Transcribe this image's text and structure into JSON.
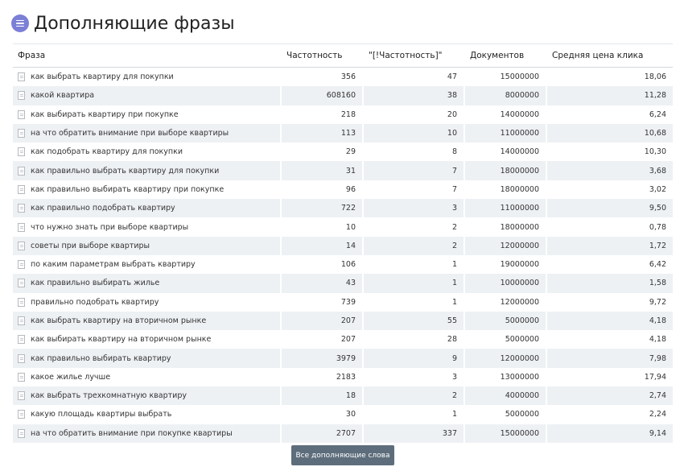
{
  "header": {
    "title": "Дополняющие фразы",
    "menu_icon": "menu-icon"
  },
  "table": {
    "columns": [
      "Фраза",
      "Частотность",
      "\"[!Частотность]\"",
      "Документов",
      "Средняя цена клика"
    ],
    "rows": [
      {
        "phrase": "как выбрать квартиру для покупки",
        "freq": "356",
        "exact": "47",
        "docs": "15000000",
        "cpc": "18,06"
      },
      {
        "phrase": "какой квартира",
        "freq": "608160",
        "exact": "38",
        "docs": "8000000",
        "cpc": "11,28"
      },
      {
        "phrase": "как выбирать квартиру при покупке",
        "freq": "218",
        "exact": "20",
        "docs": "14000000",
        "cpc": "6,24"
      },
      {
        "phrase": "на что обратить внимание при выборе квартиры",
        "freq": "113",
        "exact": "10",
        "docs": "11000000",
        "cpc": "10,68"
      },
      {
        "phrase": "как подобрать квартиру для покупки",
        "freq": "29",
        "exact": "8",
        "docs": "14000000",
        "cpc": "10,30"
      },
      {
        "phrase": "как правильно выбрать квартиру для покупки",
        "freq": "31",
        "exact": "7",
        "docs": "18000000",
        "cpc": "3,68"
      },
      {
        "phrase": "как правильно выбирать квартиру при покупке",
        "freq": "96",
        "exact": "7",
        "docs": "18000000",
        "cpc": "3,02"
      },
      {
        "phrase": "как правильно подобрать квартиру",
        "freq": "722",
        "exact": "3",
        "docs": "11000000",
        "cpc": "9,50"
      },
      {
        "phrase": "что нужно знать при выборе квартиры",
        "freq": "10",
        "exact": "2",
        "docs": "18000000",
        "cpc": "0,78"
      },
      {
        "phrase": "советы при выборе квартиры",
        "freq": "14",
        "exact": "2",
        "docs": "12000000",
        "cpc": "1,72"
      },
      {
        "phrase": "по каким параметрам выбрать квартиру",
        "freq": "106",
        "exact": "1",
        "docs": "19000000",
        "cpc": "6,42"
      },
      {
        "phrase": "как правильно выбирать жилье",
        "freq": "43",
        "exact": "1",
        "docs": "10000000",
        "cpc": "1,58"
      },
      {
        "phrase": "правильно подобрать квартиру",
        "freq": "739",
        "exact": "1",
        "docs": "12000000",
        "cpc": "9,72"
      },
      {
        "phrase": "как выбрать квартиру на вторичном рынке",
        "freq": "207",
        "exact": "55",
        "docs": "5000000",
        "cpc": "4,18"
      },
      {
        "phrase": "как выбирать квартиру на вторичном рынке",
        "freq": "207",
        "exact": "28",
        "docs": "5000000",
        "cpc": "4,18"
      },
      {
        "phrase": "как правильно выбирать квартиру",
        "freq": "3979",
        "exact": "9",
        "docs": "12000000",
        "cpc": "7,98"
      },
      {
        "phrase": "какое жилье лучше",
        "freq": "2183",
        "exact": "3",
        "docs": "13000000",
        "cpc": "17,94"
      },
      {
        "phrase": "как выбрать трехкомнатную квартиру",
        "freq": "18",
        "exact": "2",
        "docs": "4000000",
        "cpc": "2,74"
      },
      {
        "phrase": "какую площадь квартиры выбрать",
        "freq": "30",
        "exact": "1",
        "docs": "5000000",
        "cpc": "2,24"
      },
      {
        "phrase": "на что обратить внимание при покупке квартиры",
        "freq": "2707",
        "exact": "337",
        "docs": "15000000",
        "cpc": "9,14"
      }
    ]
  },
  "footer": {
    "button_label": "Все дополняющие слова"
  },
  "colors": {
    "accent": "#7b7fd6",
    "button": "#5d6d7c",
    "row_alt": "#eef1f4"
  }
}
